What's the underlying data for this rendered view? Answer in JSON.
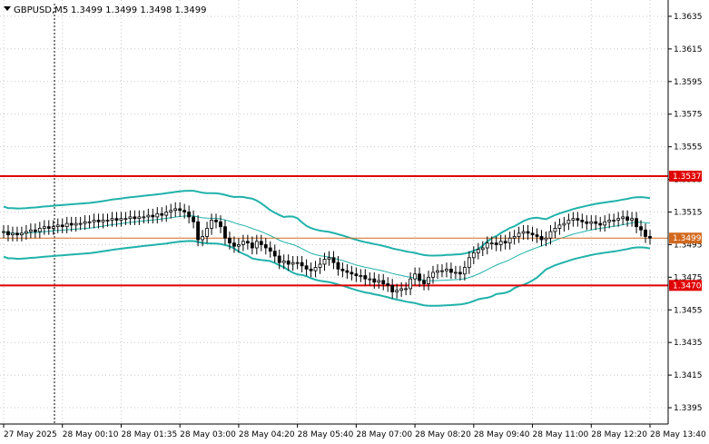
{
  "chart_title": {
    "symbol": "GBPUSD,M5",
    "ohlc": "1.3499 1.3499 1.3498 1.3499"
  },
  "colors": {
    "background": "#ffffff",
    "grid": "#c8c8c8",
    "candle": "#000000",
    "bollinger": "#20b2aa",
    "level_line": "#e00000",
    "price_line": "#d2691e"
  },
  "chart_data": {
    "type": "candlestick",
    "ylim": [
      1.3385,
      1.3645
    ],
    "y_ticks": [
      "1.3635",
      "1.3615",
      "1.3595",
      "1.3575",
      "1.3555",
      "1.3535",
      "1.3515",
      "1.3495",
      "1.3475",
      "1.3455",
      "1.3435",
      "1.3415",
      "1.3395"
    ],
    "x_ticks": [
      "27 May 2025",
      "28 May 00:10",
      "28 May 01:35",
      "28 May 03:00",
      "28 May 04:20",
      "28 May 05:40",
      "28 May 07:00",
      "28 May 08:20",
      "28 May 09:40",
      "28 May 11:00",
      "28 May 12:20",
      "28 May 13:40"
    ],
    "horizontal_levels": [
      {
        "label": "1.3537",
        "value": 1.3537
      },
      {
        "label": "1.3470",
        "value": 1.347
      }
    ],
    "current_price": {
      "label": "1.3499",
      "value": 1.3499
    },
    "closes": [
      1.3503,
      1.3501,
      1.3502,
      1.3501,
      1.3502,
      1.3503,
      1.3504,
      1.3503,
      1.3505,
      1.3506,
      1.3505,
      1.3506,
      1.3507,
      1.3506,
      1.3508,
      1.3507,
      1.3508,
      1.3508,
      1.3509,
      1.3509,
      1.351,
      1.3509,
      1.351,
      1.351,
      1.3511,
      1.351,
      1.3511,
      1.3511,
      1.3512,
      1.3511,
      1.3512,
      1.3512,
      1.3513,
      1.3512,
      1.3514,
      1.3513,
      1.3515,
      1.3516,
      1.3517,
      1.3516,
      1.3515,
      1.3512,
      1.3509,
      1.3498,
      1.35,
      1.3505,
      1.351,
      1.3509,
      1.3506,
      1.3499,
      1.3496,
      1.3494,
      1.3495,
      1.3497,
      1.3496,
      1.3493,
      1.3497,
      1.3495,
      1.3493,
      1.3491,
      1.3488,
      1.3484,
      1.3485,
      1.3483,
      1.3484,
      1.3484,
      1.3482,
      1.348,
      1.3479,
      1.3481,
      1.3483,
      1.3486,
      1.3487,
      1.3484,
      1.348,
      1.3479,
      1.3478,
      1.3477,
      1.3476,
      1.3476,
      1.3474,
      1.3474,
      1.3472,
      1.3473,
      1.3471,
      1.347,
      1.3466,
      1.3467,
      1.3468,
      1.3468,
      1.3474,
      1.3477,
      1.3473,
      1.3471,
      1.3475,
      1.3478,
      1.3479,
      1.3479,
      1.348,
      1.3478,
      1.3478,
      1.3477,
      1.3481,
      1.3487,
      1.349,
      1.3492,
      1.3493,
      1.3496,
      1.3496,
      1.3495,
      1.3497,
      1.3496,
      1.3499,
      1.35,
      1.3502,
      1.3503,
      1.3502,
      1.3501,
      1.35,
      1.3498,
      1.3499,
      1.3503,
      1.3505,
      1.3507,
      1.3508,
      1.351,
      1.3511,
      1.351,
      1.3509,
      1.3508,
      1.3509,
      1.3508,
      1.3507,
      1.3509,
      1.351,
      1.351,
      1.3511,
      1.3512,
      1.351,
      1.3511,
      1.3506,
      1.3504,
      1.35,
      1.3499
    ]
  }
}
